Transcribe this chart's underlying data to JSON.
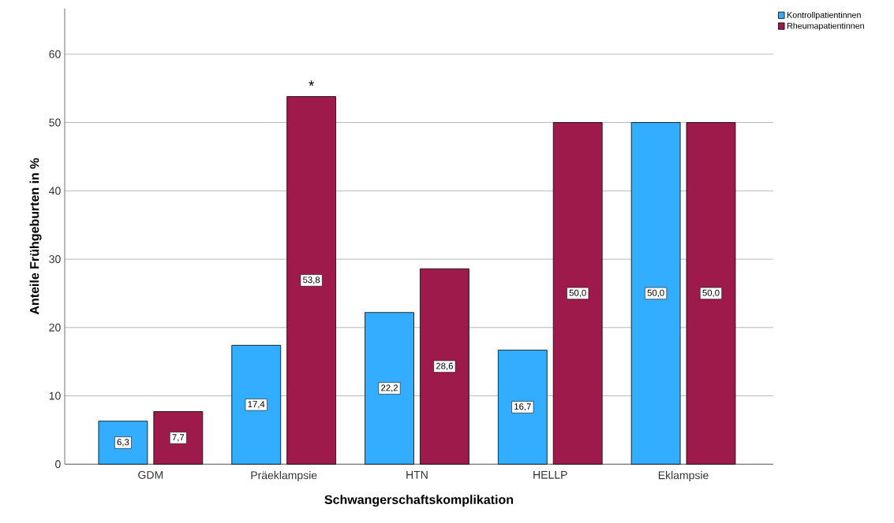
{
  "chart_data": {
    "type": "bar",
    "xlabel": "Schwangerschaftskomplikation",
    "ylabel": "Anteile Frühgeburten in %",
    "categories": [
      "GDM",
      "Präeklampsie",
      "HTN",
      "HELLP",
      "Eklampsie"
    ],
    "series": [
      {
        "name": "Kontrollpatientinnen",
        "color": "#33adff",
        "values": [
          6.3,
          17.4,
          22.2,
          16.7,
          50.0
        ],
        "value_labels": [
          "6,3",
          "17,4",
          "22,2",
          "16,7",
          "50,0"
        ]
      },
      {
        "name": "Rheumapatientinnen",
        "color": "#9e1a4a",
        "values": [
          7.7,
          53.8,
          28.6,
          50.0,
          50.0
        ],
        "value_labels": [
          "7,7",
          "53,8",
          "28,6",
          "50,0",
          "50,0"
        ]
      }
    ],
    "ylim": [
      0,
      66.7
    ],
    "yticks": [
      0,
      10,
      20,
      30,
      40,
      50,
      60
    ],
    "grid": "y",
    "legend": "top right",
    "annotations": [
      {
        "text": "*",
        "x": "Präeklampsie",
        "y": 53.8
      }
    ]
  }
}
